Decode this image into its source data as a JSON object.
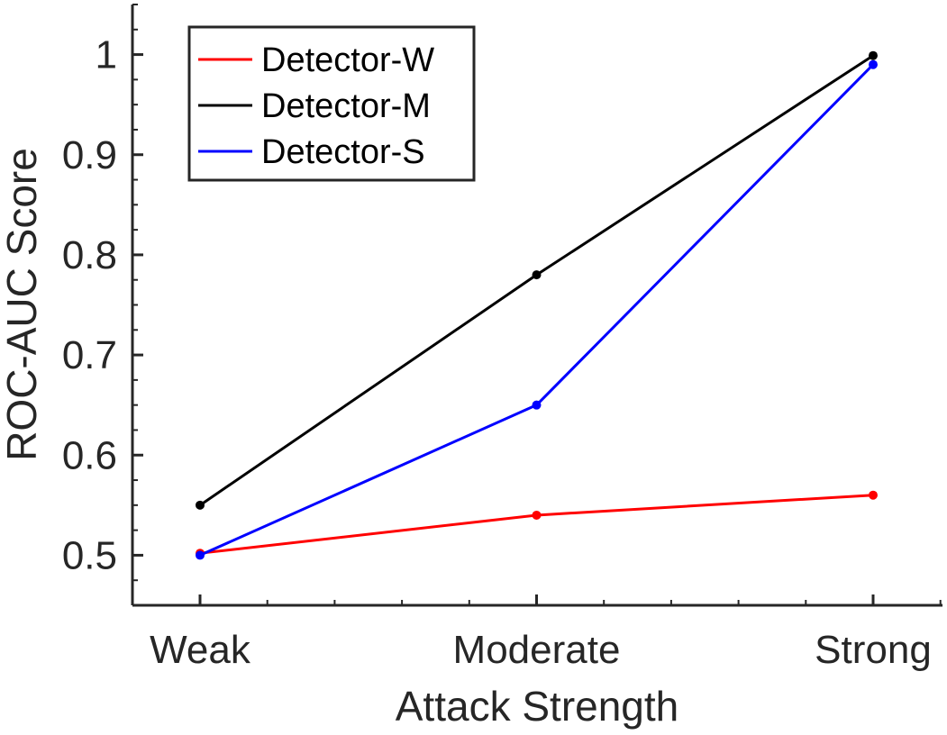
{
  "chart_data": {
    "type": "line",
    "categories": [
      "Weak",
      "Moderate",
      "Strong"
    ],
    "x_ticks": [
      "Weak",
      "Moderate",
      "Strong"
    ],
    "y_ticks": [
      "0.5",
      "0.6",
      "0.7",
      "0.8",
      "0.9",
      "1"
    ],
    "series": [
      {
        "name": "Detector-W",
        "color": "#ff0000",
        "values": [
          0.502,
          0.54,
          0.56
        ]
      },
      {
        "name": "Detector-M",
        "color": "#000000",
        "values": [
          0.55,
          0.78,
          0.999
        ]
      },
      {
        "name": "Detector-S",
        "color": "#0000ff",
        "values": [
          0.5,
          0.65,
          0.99
        ]
      }
    ],
    "xlabel": "Attack Strength",
    "ylabel": "ROC-AUC Score",
    "ylim": [
      0.45,
      1.05
    ],
    "grid": false,
    "legend_position": "top-left",
    "minor_ticks": true
  }
}
